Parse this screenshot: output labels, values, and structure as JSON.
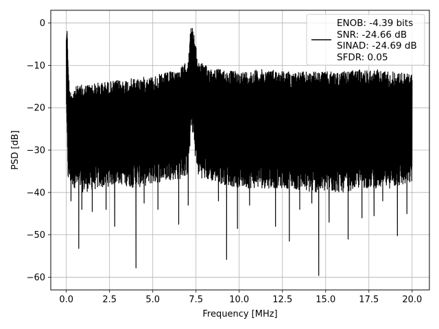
{
  "chart_data": {
    "type": "line",
    "title": "",
    "xlabel": "Frequency [MHz]",
    "ylabel": "PSD [dB]",
    "xlim": [
      -0.9,
      21.0
    ],
    "ylim": [
      -63.0,
      3.0
    ],
    "xticks": [
      0.0,
      2.5,
      5.0,
      7.5,
      10.0,
      12.5,
      15.0,
      17.5,
      20.0
    ],
    "xtick_labels": [
      "0.0",
      "2.5",
      "5.0",
      "7.5",
      "10.0",
      "12.5",
      "15.0",
      "17.5",
      "20.0"
    ],
    "yticks": [
      0,
      -10,
      -20,
      -30,
      -40,
      -50,
      -60
    ],
    "ytick_labels": [
      "0",
      "−10",
      "−20",
      "−30",
      "−40",
      "−50",
      "−60"
    ],
    "grid": true,
    "legend_position": "top-right",
    "legend_entries": [
      "ENOB: -4.39 bits",
      "SNR: -24.66 dB",
      "SINAD: -24.69 dB",
      "SFDR: 0.05"
    ],
    "series": [
      {
        "color": "#000000",
        "envelope": {
          "x": [
            0.0,
            0.05,
            0.1,
            0.2,
            0.5,
            1.0,
            2.0,
            3.0,
            4.0,
            5.0,
            6.0,
            6.5,
            7.0,
            7.15,
            7.25,
            7.4,
            7.6,
            8.0,
            9.0,
            10.0,
            11.0,
            12.0,
            13.0,
            14.0,
            15.0,
            16.0,
            17.0,
            18.0,
            19.0,
            20.0
          ],
          "upper": [
            -4.0,
            -1.8,
            -10.0,
            -16.0,
            -15.0,
            -14.5,
            -14.0,
            -13.5,
            -13.0,
            -12.5,
            -11.5,
            -11.0,
            -9.0,
            -3.0,
            0.0,
            -3.0,
            -8.5,
            -10.0,
            -11.0,
            -11.5,
            -11.0,
            -11.0,
            -11.5,
            -11.5,
            -11.5,
            -11.5,
            -11.0,
            -11.0,
            -11.5,
            -12.0
          ],
          "lower": [
            -18.0,
            -25.0,
            -36.0,
            -38.0,
            -39.0,
            -40.0,
            -39.0,
            -38.0,
            -39.0,
            -38.0,
            -37.0,
            -37.0,
            -36.0,
            -30.0,
            -24.0,
            -30.0,
            -36.0,
            -37.0,
            -38.0,
            -39.0,
            -39.0,
            -39.0,
            -39.0,
            -40.0,
            -40.0,
            -40.0,
            -39.0,
            -39.0,
            -39.0,
            -38.0
          ]
        },
        "spikes": [
          {
            "x": 0.27,
            "y": -42.0
          },
          {
            "x": 0.72,
            "y": -53.2
          },
          {
            "x": 0.9,
            "y": -44.0
          },
          {
            "x": 1.5,
            "y": -44.5
          },
          {
            "x": 2.3,
            "y": -44.0
          },
          {
            "x": 2.8,
            "y": -48.0
          },
          {
            "x": 4.03,
            "y": -57.8
          },
          {
            "x": 4.5,
            "y": -42.5
          },
          {
            "x": 5.3,
            "y": -44.0
          },
          {
            "x": 6.5,
            "y": -47.5
          },
          {
            "x": 7.05,
            "y": -43.0
          },
          {
            "x": 8.8,
            "y": -42.0
          },
          {
            "x": 9.27,
            "y": -55.8
          },
          {
            "x": 9.9,
            "y": -48.5
          },
          {
            "x": 10.6,
            "y": -43.0
          },
          {
            "x": 12.1,
            "y": -48.0
          },
          {
            "x": 12.9,
            "y": -51.5
          },
          {
            "x": 13.5,
            "y": -44.0
          },
          {
            "x": 14.2,
            "y": -42.5
          },
          {
            "x": 14.6,
            "y": -59.6
          },
          {
            "x": 15.2,
            "y": -47.0
          },
          {
            "x": 16.3,
            "y": -51.0
          },
          {
            "x": 17.1,
            "y": -46.0
          },
          {
            "x": 17.8,
            "y": -45.5
          },
          {
            "x": 18.3,
            "y": -42.0
          },
          {
            "x": 19.15,
            "y": -50.2
          },
          {
            "x": 19.7,
            "y": -45.0
          }
        ]
      }
    ]
  }
}
